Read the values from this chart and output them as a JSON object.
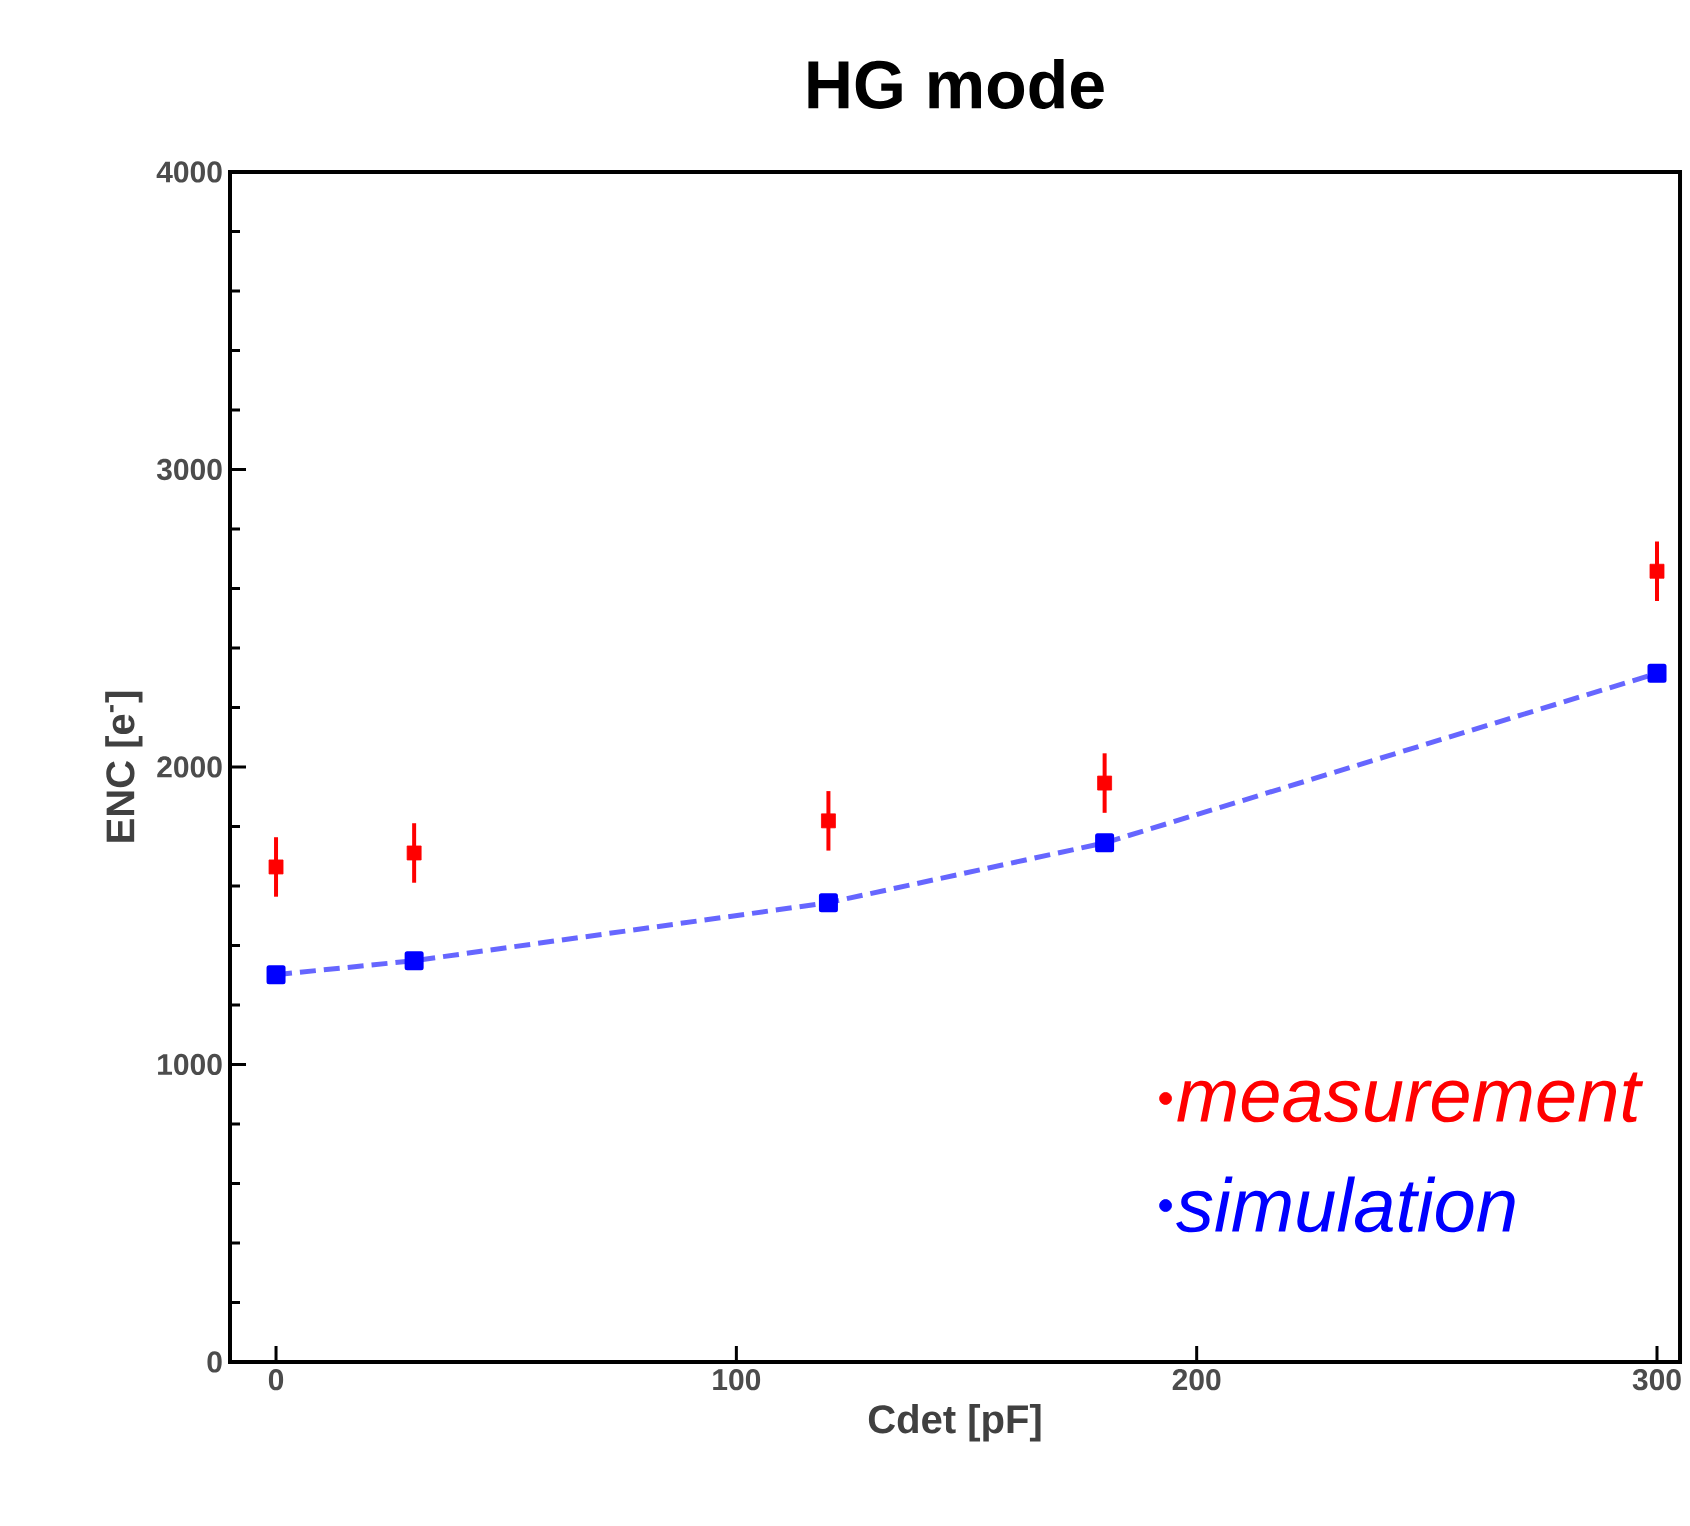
{
  "chart_data": {
    "type": "scatter",
    "title": "HG mode",
    "xlabel": "Cdet [pF]",
    "ylabel": "ENC [e$^{-}$]",
    "x": [
      0,
      30,
      120,
      180,
      300
    ],
    "series": [
      {
        "name": "measurement",
        "color": "#ff0000",
        "marker": "square",
        "values": [
          1664,
          1711,
          1819,
          1946,
          2658
        ],
        "errors": [
          100,
          100,
          100,
          100,
          100
        ]
      },
      {
        "name": "simulation",
        "color": "#0000ff",
        "type": "line",
        "marker": "square",
        "line_style": "dashed",
        "values": [
          1302,
          1349,
          1544,
          1745,
          2315
        ]
      }
    ],
    "xlim": [
      -10,
      305
    ],
    "ylim": [
      0,
      4000
    ],
    "xticks": [
      0,
      100,
      200,
      300
    ],
    "yticks": [
      0,
      1000,
      2000,
      3000,
      4000
    ],
    "grid": false,
    "legend": "bottom right"
  }
}
